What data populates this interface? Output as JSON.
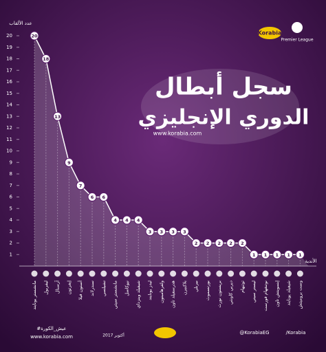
{
  "chart_data": {
    "type": "area",
    "title": "سجل أبطال",
    "subtitle": "الدوري الإنجليزي",
    "website": "www.korabia.com",
    "y_label": "عدد الألقاب",
    "x_label": "الأندية",
    "brand": "Korabia",
    "league": "Premier League",
    "categories": [
      "مانشستر يونايتد",
      "ليفربول",
      "آرسنال",
      "إيفرتون",
      "أستون فيلا",
      "سندرلاند",
      "تشيلسي",
      "مانشستر سيتي",
      "نيوكاسل",
      "شيفيلد وينزداي",
      "ليدز يونايتد",
      "ولفرهامبتون",
      "هدرسفيلد تاون",
      "بلاكبيرن",
      "بيرنلي",
      "بورتسموث",
      "بريستون نورث",
      "ديربي كاونتي",
      "توتنهام",
      "ليستر سيتي",
      "نوتنغهام فورست",
      "إبسويتش تاون",
      "شيفيلد يونايتد",
      "وست بروميتش"
    ],
    "values": [
      20,
      18,
      13,
      9,
      7,
      6,
      6,
      4,
      4,
      4,
      3,
      3,
      3,
      3,
      2,
      2,
      2,
      2,
      2,
      1,
      1,
      1,
      1,
      1
    ],
    "color": "#ffffff",
    "ylim": [
      0,
      20
    ],
    "yticks": [
      1,
      2,
      3,
      4,
      5,
      6,
      7,
      8,
      9,
      10,
      11,
      12,
      13,
      14,
      15,
      16,
      17,
      18,
      19,
      20
    ],
    "footer": {
      "hashtag": "#عيش_الكورة",
      "site": "www.korabia.com",
      "date": "أكتوبر 2017",
      "twitter": "@KorabiaEG",
      "facebook": "/Korabia"
    }
  }
}
